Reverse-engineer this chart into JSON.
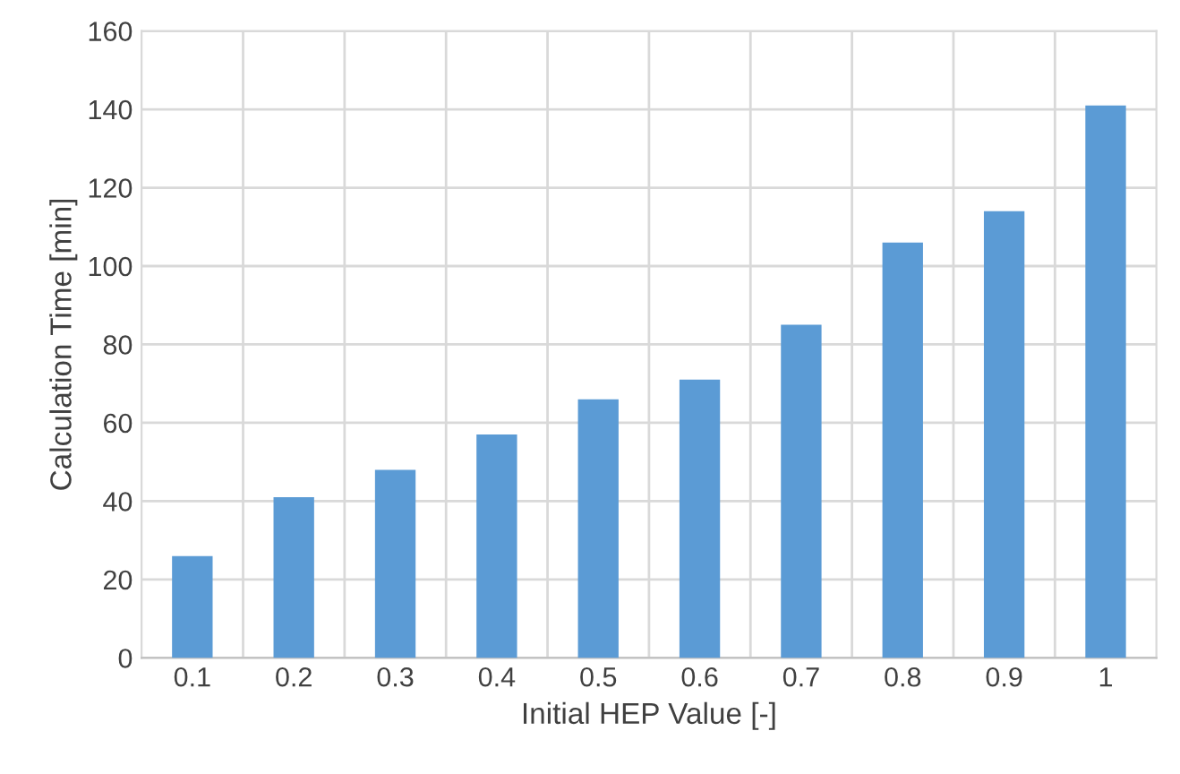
{
  "chart_data": {
    "type": "bar",
    "xlabel": "Initial HEP Value [-]",
    "ylabel": "Calculation Time [min]",
    "categories": [
      "0.1",
      "0.2",
      "0.3",
      "0.4",
      "0.5",
      "0.6",
      "0.7",
      "0.8",
      "0.9",
      "1"
    ],
    "values": [
      26,
      41,
      48,
      57,
      66,
      71,
      85,
      106,
      114,
      141
    ],
    "color": "#5b9bd5",
    "ylim": [
      0,
      160
    ],
    "yticks": [
      0,
      20,
      40,
      60,
      80,
      100,
      120,
      140,
      160
    ],
    "grid": true
  }
}
